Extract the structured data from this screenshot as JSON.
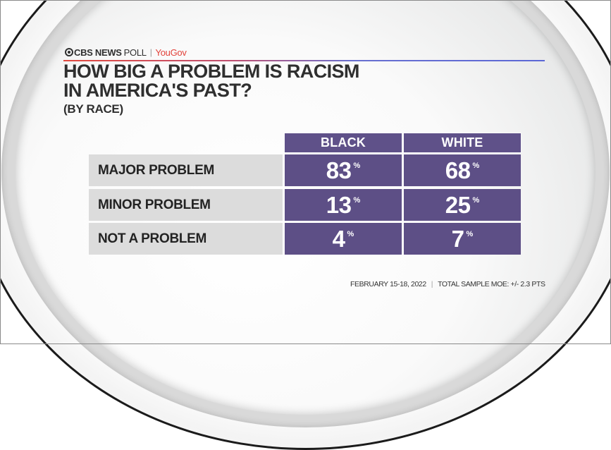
{
  "brand": {
    "network": "CBS NEWS",
    "poll_label": "POLL",
    "partner": "YouGov",
    "separator": "|",
    "icon": "cbs-eye-icon"
  },
  "colors": {
    "cell_purple": "#5d4f86",
    "header_purple": "#5f5189",
    "label_gray": "#dcdcdc",
    "title_text": "#2f2f2f",
    "yougov_red": "#e2423a",
    "rule_left": "#e24a3f",
    "rule_right": "#5b67d6"
  },
  "title": {
    "line1": "HOW BIG A PROBLEM IS RACISM",
    "line2": "IN AMERICA'S PAST?",
    "subtitle": "(BY RACE)"
  },
  "table": {
    "columns": [
      "BLACK",
      "WHITE"
    ],
    "rows": [
      {
        "label": "MAJOR PROBLEM",
        "values": [
          "83",
          "68"
        ]
      },
      {
        "label": "MINOR PROBLEM",
        "values": [
          "13",
          "25"
        ]
      },
      {
        "label": "NOT A PROBLEM",
        "values": [
          "4",
          "7"
        ]
      }
    ],
    "unit": "%"
  },
  "footer": {
    "date": "FEBRUARY 15-18, 2022",
    "separator": "|",
    "moe": "TOTAL SAMPLE MOE: +/- 2.3 PTS"
  },
  "chart_data": {
    "type": "table",
    "title": "HOW BIG A PROBLEM IS RACISM IN AMERICA'S PAST?",
    "subtitle": "(BY RACE)",
    "categories": [
      "MAJOR PROBLEM",
      "MINOR PROBLEM",
      "NOT A PROBLEM"
    ],
    "series": [
      {
        "name": "BLACK",
        "values": [
          83,
          13,
          4
        ]
      },
      {
        "name": "WHITE",
        "values": [
          68,
          25,
          7
        ]
      }
    ],
    "unit": "%",
    "source": "CBS NEWS POLL | YouGov",
    "note": "FEBRUARY 15-18, 2022 | TOTAL SAMPLE MOE: +/- 2.3 PTS"
  }
}
